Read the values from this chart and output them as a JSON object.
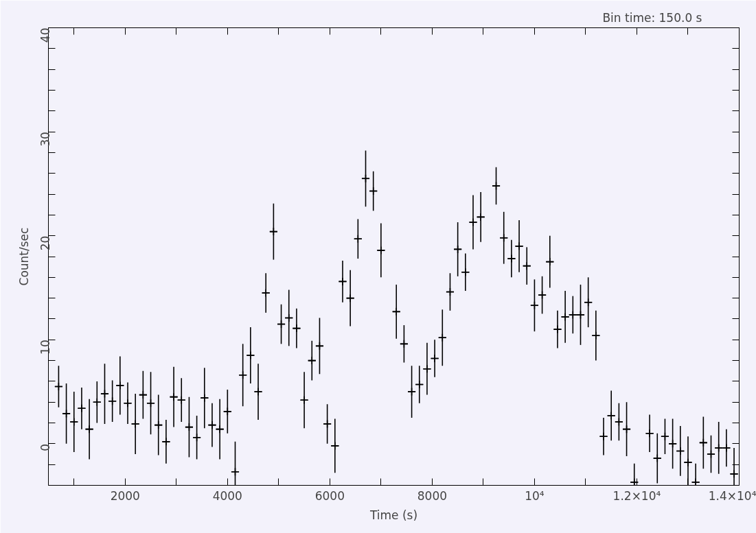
{
  "chart_data": {
    "type": "scatter",
    "xlabel": "Time (s)",
    "ylabel": "Count/sec",
    "annotations": [
      "Bin time:     150.0       s"
    ],
    "marker": "cross",
    "grid": false,
    "xlim": [
      500,
      14000
    ],
    "ylim": [
      -4,
      40
    ],
    "xticks": [
      {
        "value": 1000,
        "label": null
      },
      2000,
      {
        "value": 3000,
        "label": null
      },
      4000,
      {
        "value": 5000,
        "label": null
      },
      6000,
      {
        "value": 7000,
        "label": null
      },
      8000,
      {
        "value": 9000,
        "label": null
      },
      {
        "value": 10000,
        "label": "10⁴"
      },
      {
        "value": 11000,
        "label": null
      },
      {
        "value": 12000,
        "label": "1.2×10⁴"
      },
      {
        "value": 13000,
        "label": null
      },
      {
        "value": 14000,
        "label": "1.4×10⁴"
      }
    ],
    "yticks": [
      {
        "value": -2,
        "label": null
      },
      0,
      {
        "value": 2,
        "label": null
      },
      {
        "value": 4,
        "label": null
      },
      {
        "value": 6,
        "label": null
      },
      {
        "value": 8,
        "label": null
      },
      10,
      {
        "value": 12,
        "label": null
      },
      {
        "value": 14,
        "label": null
      },
      {
        "value": 16,
        "label": null
      },
      {
        "value": 18,
        "label": null
      },
      20,
      {
        "value": 22,
        "label": null
      },
      {
        "value": 24,
        "label": null
      },
      {
        "value": 26,
        "label": null
      },
      {
        "value": 28,
        "label": null
      },
      30,
      {
        "value": 32,
        "label": null
      },
      {
        "value": 34,
        "label": null
      },
      {
        "value": 36,
        "label": null
      },
      {
        "value": 38,
        "label": null
      },
      40
    ],
    "series": [
      {
        "color": "#000000",
        "x": [
          700,
          850,
          1000,
          1150,
          1300,
          1450,
          1600,
          1750,
          1900,
          2050,
          2200,
          2350,
          2500,
          2650,
          2800,
          2950,
          3100,
          3250,
          3400,
          3550,
          3700,
          3850,
          4000,
          4150,
          4300,
          4450,
          4600,
          4750,
          4900,
          5050,
          5200,
          5350,
          5500,
          5650,
          5800,
          5950,
          6100,
          6250,
          6400,
          6550,
          6700,
          6850,
          7000,
          7300,
          7450,
          7600,
          7750,
          7900,
          8050,
          8200,
          8350,
          8500,
          8650,
          8800,
          8950,
          9250,
          9400,
          9550,
          9700,
          9850,
          10000,
          10150,
          10300,
          10450,
          10600,
          10750,
          10900,
          11050,
          11200,
          11350,
          11500,
          11650,
          11800,
          11950,
          12250,
          12400,
          12550,
          12700,
          12850,
          13000,
          13150,
          13300,
          13450,
          13600,
          13750,
          13900
        ],
        "values": [
          5.5,
          2.9,
          2.1,
          3.4,
          1.4,
          4.0,
          4.8,
          4.1,
          5.6,
          3.9,
          1.9,
          4.7,
          3.9,
          1.8,
          0.2,
          4.5,
          4.2,
          1.6,
          0.6,
          4.4,
          1.8,
          1.4,
          3.1,
          -2.7,
          6.6,
          8.5,
          5.0,
          14.5,
          20.4,
          11.5,
          12.1,
          11.1,
          4.2,
          8.0,
          9.4,
          1.9,
          -0.2,
          15.6,
          14.0,
          19.7,
          25.5,
          24.3,
          18.6,
          12.7,
          9.6,
          5.0,
          5.7,
          7.2,
          8.2,
          10.2,
          14.6,
          18.7,
          16.5,
          21.3,
          21.8,
          24.8,
          19.8,
          17.8,
          19.0,
          17.1,
          13.3,
          14.3,
          17.5,
          11.0,
          12.2,
          12.4,
          12.4,
          13.6,
          10.4,
          0.7,
          2.7,
          2.1,
          1.4,
          -3.7,
          1.0,
          -1.4,
          0.7,
          0.0,
          -0.7,
          -1.8,
          -3.7,
          0.1,
          -1.0,
          -0.4,
          -0.4,
          -2.9
        ],
        "errors": [
          2.0,
          2.9,
          2.9,
          2.0,
          2.9,
          2.0,
          2.9,
          2.0,
          2.8,
          2.0,
          2.9,
          2.3,
          3.0,
          2.9,
          2.1,
          2.9,
          2.1,
          2.9,
          2.1,
          2.9,
          2.1,
          2.9,
          2.1,
          [
            -4,
            0.2
          ],
          3.0,
          2.7,
          2.7,
          1.9,
          2.7,
          1.9,
          2.7,
          1.9,
          2.7,
          1.9,
          2.7,
          1.9,
          2.6,
          2.0,
          2.7,
          1.9,
          2.7,
          1.9,
          2.6,
          2.6,
          1.8,
          2.5,
          1.8,
          2.5,
          1.8,
          2.7,
          1.8,
          2.6,
          1.8,
          2.6,
          2.4,
          1.8,
          2.5,
          1.8,
          2.5,
          1.8,
          2.5,
          1.8,
          2.5,
          1.8,
          2.5,
          1.8,
          2.9,
          2.4,
          2.4,
          1.8,
          2.4,
          1.8,
          2.6,
          [
            -4,
            -1.9
          ],
          1.8,
          2.4,
          1.7,
          2.4,
          2.4,
          [
            -4,
            0.7
          ],
          [
            -4,
            -1.9
          ],
          2.5,
          1.8,
          2.5,
          1.8,
          [
            -4,
            -0.4
          ]
        ],
        "xerrors": [
          75,
          75,
          75,
          75,
          75,
          75,
          75,
          75,
          75,
          75,
          75,
          75,
          75,
          75,
          75,
          75,
          75,
          75,
          75,
          75,
          75,
          75,
          75,
          75,
          75,
          75,
          75,
          75,
          75,
          75,
          75,
          75,
          75,
          75,
          75,
          75,
          75,
          75,
          75,
          75,
          75,
          75,
          75,
          75,
          75,
          75,
          75,
          75,
          75,
          75,
          75,
          75,
          75,
          75,
          75,
          75,
          75,
          75,
          75,
          75,
          75,
          75,
          75,
          75,
          75,
          75,
          75,
          75,
          75,
          75,
          75,
          75,
          75,
          75,
          75,
          75,
          75,
          75,
          75,
          75,
          75,
          75,
          75,
          75,
          75,
          75
        ]
      }
    ]
  }
}
